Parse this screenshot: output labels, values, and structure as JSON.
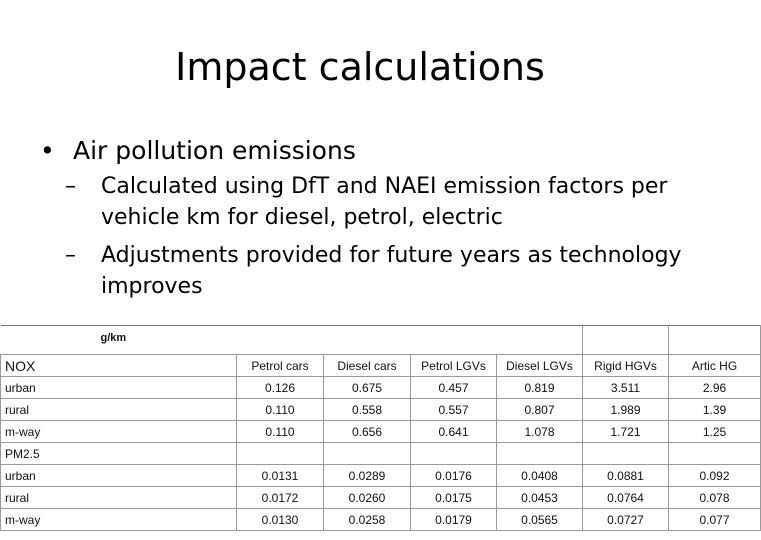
{
  "slide": {
    "title": "Impact calculations",
    "bullet": "Air pollution emissions",
    "sub_bullets": [
      "Calculated using DfT and NAEI emission factors per vehicle km for diesel, petrol, electric",
      "Adjustments provided for future years as technology improves"
    ],
    "bullet_symbol": "•",
    "dash_symbol": "–"
  },
  "table": {
    "unit_label": "g/km",
    "section_nox": "NOX",
    "section_pm": "PM2.5",
    "columns": [
      "Petrol cars",
      "Diesel cars",
      "Petrol LGVs",
      "Diesel LGVs",
      "Rigid HGVs",
      "Artic HG"
    ],
    "nox_rows": [
      {
        "label": "urban",
        "values": [
          "0.126",
          "0.675",
          "0.457",
          "0.819",
          "3.511",
          "2.96"
        ]
      },
      {
        "label": "rural",
        "values": [
          "0.110",
          "0.558",
          "0.557",
          "0.807",
          "1.989",
          "1.39"
        ]
      },
      {
        "label": "m-way",
        "values": [
          "0.110",
          "0.656",
          "0.641",
          "1.078",
          "1.721",
          "1.25"
        ]
      }
    ],
    "pm_rows": [
      {
        "label": "urban",
        "values": [
          "0.0131",
          "0.0289",
          "0.0176",
          "0.0408",
          "0.0881",
          "0.092"
        ]
      },
      {
        "label": "rural",
        "values": [
          "0.0172",
          "0.0260",
          "0.0175",
          "0.0453",
          "0.0764",
          "0.078"
        ]
      },
      {
        "label": "m-way",
        "values": [
          "0.0130",
          "0.0258",
          "0.0179",
          "0.0565",
          "0.0727",
          "0.077"
        ]
      }
    ]
  }
}
